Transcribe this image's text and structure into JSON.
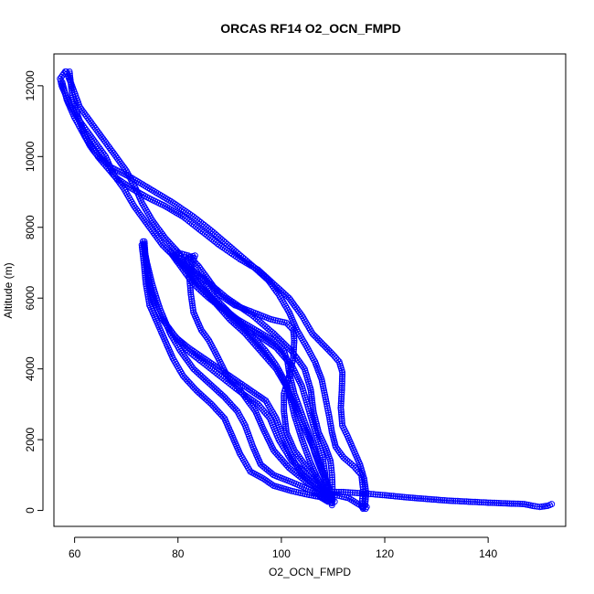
{
  "chart_data": {
    "type": "scatter",
    "title": "ORCAS RF14 O2_OCN_FMPD",
    "xlabel": "O2_OCN_FMPD",
    "ylabel": "Altitude (m)",
    "xlim": [
      56,
      155
    ],
    "ylim": [
      -450,
      12900
    ],
    "xticks": [
      60,
      80,
      100,
      120,
      140
    ],
    "yticks": [
      0,
      2000,
      4000,
      6000,
      8000,
      10000,
      12000
    ],
    "grid": false,
    "color": "#0000ff",
    "series": [
      {
        "values": [
          [
            58.4,
            12400
          ],
          [
            59.5,
            12000
          ],
          [
            61,
            11400
          ],
          [
            63.5,
            10900
          ],
          [
            66,
            10400
          ],
          [
            68,
            10000
          ],
          [
            70,
            9600
          ],
          [
            71.8,
            9100
          ],
          [
            73,
            8700
          ],
          [
            75,
            8200
          ],
          [
            77.5,
            7700
          ],
          [
            80,
            7300
          ],
          [
            82,
            6800
          ],
          [
            84.5,
            6300
          ],
          [
            87,
            5900
          ],
          [
            90,
            5400
          ],
          [
            93,
            5000
          ],
          [
            96,
            4500
          ],
          [
            99,
            4000
          ],
          [
            101,
            3500
          ],
          [
            102.5,
            3000
          ],
          [
            104,
            2500
          ],
          [
            105.5,
            2000
          ],
          [
            107,
            1500
          ],
          [
            108.3,
            1000
          ],
          [
            109.3,
            600
          ],
          [
            109.7,
            300
          ],
          [
            109.8,
            150
          ]
        ]
      },
      {
        "values": [
          [
            109.8,
            200
          ],
          [
            109.9,
            600
          ],
          [
            109.8,
            1000
          ],
          [
            109.5,
            1400
          ],
          [
            108.5,
            1800
          ],
          [
            107.2,
            2200
          ],
          [
            106.2,
            2800
          ],
          [
            105.7,
            3400
          ],
          [
            104.5,
            4000
          ],
          [
            102,
            4500
          ],
          [
            98.5,
            5000
          ],
          [
            94.5,
            5500
          ],
          [
            89.5,
            6000
          ],
          [
            84.5,
            6600
          ],
          [
            80.5,
            7000
          ],
          [
            77,
            7500
          ],
          [
            74.5,
            8000
          ],
          [
            71.5,
            8600
          ],
          [
            69.5,
            9100
          ],
          [
            67.5,
            9500
          ],
          [
            66,
            10000
          ],
          [
            63.5,
            10500
          ],
          [
            61,
            11000
          ],
          [
            59,
            11500
          ],
          [
            57.5,
            12000
          ],
          [
            57.2,
            12200
          ],
          [
            58.2,
            12400
          ]
        ]
      },
      {
        "values": [
          [
            57.6,
            12100
          ],
          [
            58.5,
            11600
          ],
          [
            60,
            11100
          ],
          [
            61.5,
            10700
          ],
          [
            63,
            10300
          ],
          [
            64,
            10100
          ],
          [
            67,
            9700
          ],
          [
            71,
            9400
          ],
          [
            75,
            9050
          ],
          [
            79,
            8700
          ],
          [
            83,
            8300
          ],
          [
            86.5,
            7900
          ],
          [
            90.5,
            7400
          ],
          [
            94.5,
            6900
          ],
          [
            97.5,
            6500
          ],
          [
            99.5,
            6100
          ],
          [
            101.5,
            5600
          ],
          [
            103,
            5100
          ],
          [
            105,
            4600
          ],
          [
            106.5,
            4200
          ],
          [
            107.8,
            3700
          ],
          [
            108.5,
            3200
          ],
          [
            109.2,
            2700
          ],
          [
            109.8,
            2200
          ],
          [
            110.5,
            1800
          ],
          [
            112,
            1500
          ],
          [
            114,
            1250
          ],
          [
            115.5,
            1000
          ],
          [
            115.8,
            600
          ],
          [
            115.6,
            200
          ],
          [
            115.8,
            50
          ]
        ]
      },
      {
        "values": [
          [
            115.8,
            100
          ],
          [
            113,
            350
          ],
          [
            110,
            450
          ],
          [
            108,
            500
          ],
          [
            109,
            520
          ],
          [
            112,
            520
          ],
          [
            116,
            480
          ],
          [
            120,
            430
          ],
          [
            125,
            360
          ],
          [
            132,
            280
          ],
          [
            140,
            220
          ],
          [
            147,
            180
          ],
          [
            149,
            120
          ],
          [
            150,
            100
          ],
          [
            151.5,
            130
          ],
          [
            152.3,
            180
          ]
        ]
      },
      {
        "values": [
          [
            116.2,
            150
          ],
          [
            116.4,
            500
          ],
          [
            116,
            900
          ],
          [
            115.2,
            1300
          ],
          [
            114,
            1700
          ],
          [
            112.8,
            2100
          ],
          [
            111.8,
            2400
          ],
          [
            111.5,
            2900
          ],
          [
            111.7,
            3400
          ],
          [
            111.8,
            3900
          ],
          [
            111.2,
            4200
          ],
          [
            110,
            4400
          ],
          [
            108,
            4700
          ],
          [
            106,
            5000
          ],
          [
            104,
            5500
          ],
          [
            101.5,
            6000
          ],
          [
            98.5,
            6400
          ],
          [
            95.5,
            6800
          ],
          [
            92,
            7100
          ],
          [
            88,
            7500
          ],
          [
            84.5,
            7900
          ],
          [
            81,
            8300
          ],
          [
            77.5,
            8600
          ],
          [
            74,
            8850
          ],
          [
            71,
            9100
          ],
          [
            68,
            9400
          ],
          [
            64.5,
            10000
          ],
          [
            62,
            10600
          ],
          [
            60.5,
            11200
          ],
          [
            59.5,
            11800
          ],
          [
            59,
            12400
          ]
        ]
      },
      {
        "values": [
          [
            110.3,
            250
          ],
          [
            107.8,
            500
          ],
          [
            104.5,
            850
          ],
          [
            101.5,
            1200
          ],
          [
            98.5,
            1700
          ],
          [
            96.5,
            2300
          ],
          [
            95,
            2800
          ],
          [
            93.5,
            3100
          ],
          [
            91.5,
            3500
          ],
          [
            89.5,
            3800
          ],
          [
            87.8,
            4300
          ],
          [
            86,
            4800
          ],
          [
            84.5,
            5100
          ],
          [
            83,
            5600
          ],
          [
            82.5,
            6100
          ],
          [
            82.2,
            6600
          ],
          [
            82.8,
            7000
          ],
          [
            83.3,
            7200
          ],
          [
            82,
            7150
          ],
          [
            81.3,
            7050
          ]
        ]
      },
      {
        "values": [
          [
            81,
            7100
          ],
          [
            83.5,
            6700
          ],
          [
            86.5,
            6100
          ],
          [
            90.5,
            5500
          ],
          [
            94,
            5000
          ],
          [
            97,
            4500
          ],
          [
            99,
            4100
          ],
          [
            100.5,
            3700
          ],
          [
            101.5,
            3300
          ],
          [
            102.5,
            2700
          ],
          [
            104,
            2000
          ],
          [
            105.5,
            1400
          ],
          [
            107,
            900
          ],
          [
            108.5,
            550
          ],
          [
            109.6,
            350
          ]
        ]
      },
      {
        "values": [
          [
            109.5,
            400
          ],
          [
            107.5,
            700
          ],
          [
            105,
            1000
          ],
          [
            102,
            1400
          ],
          [
            99.5,
            2000
          ],
          [
            97.8,
            2600
          ],
          [
            95.5,
            3000
          ],
          [
            92.5,
            3300
          ],
          [
            89,
            3700
          ],
          [
            85.5,
            4100
          ],
          [
            82,
            4500
          ],
          [
            79,
            5000
          ],
          [
            76.5,
            5500
          ],
          [
            75,
            6100
          ],
          [
            74.2,
            6700
          ],
          [
            73.6,
            7200
          ],
          [
            73.4,
            7500
          ]
        ]
      },
      {
        "values": [
          [
            73.5,
            7600
          ],
          [
            73.8,
            7000
          ],
          [
            74.3,
            6500
          ],
          [
            75.2,
            5900
          ],
          [
            77,
            5400
          ],
          [
            79.5,
            4900
          ],
          [
            82,
            4600
          ],
          [
            85,
            4300
          ],
          [
            88,
            4000
          ],
          [
            91,
            3700
          ],
          [
            94,
            3400
          ],
          [
            97,
            3100
          ],
          [
            99,
            2600
          ],
          [
            100.5,
            2000
          ],
          [
            102,
            1500
          ],
          [
            104,
            1000
          ],
          [
            106.5,
            700
          ],
          [
            108.3,
            500
          ],
          [
            109.3,
            280
          ]
        ]
      },
      {
        "values": [
          [
            109.2,
            250
          ],
          [
            106,
            550
          ],
          [
            102,
            800
          ],
          [
            98.5,
            1000
          ],
          [
            96,
            1300
          ],
          [
            94.5,
            1800
          ],
          [
            93,
            2400
          ],
          [
            91.5,
            2800
          ],
          [
            89,
            3200
          ],
          [
            86,
            3600
          ],
          [
            83,
            4000
          ],
          [
            80.5,
            4500
          ],
          [
            78.5,
            5000
          ],
          [
            76.5,
            5700
          ],
          [
            75,
            6400
          ],
          [
            74,
            7000
          ],
          [
            73.2,
            7600
          ]
        ]
      },
      {
        "values": [
          [
            73,
            7500
          ],
          [
            73.4,
            7000
          ],
          [
            73.8,
            6400
          ],
          [
            74.5,
            5800
          ],
          [
            76,
            5300
          ],
          [
            77.5,
            4800
          ],
          [
            79,
            4300
          ],
          [
            81,
            3800
          ],
          [
            83.5,
            3400
          ],
          [
            86.5,
            3000
          ],
          [
            89,
            2600
          ],
          [
            90.5,
            2100
          ],
          [
            92,
            1600
          ],
          [
            94,
            1100
          ],
          [
            96.5,
            900
          ],
          [
            98.5,
            700
          ],
          [
            102,
            550
          ],
          [
            105,
            450
          ],
          [
            107.5,
            380
          ],
          [
            109,
            250
          ]
        ]
      },
      {
        "values": [
          [
            78.5,
            7300
          ],
          [
            80.5,
            6900
          ],
          [
            83,
            6400
          ],
          [
            86,
            6000
          ],
          [
            89.5,
            5600
          ],
          [
            93,
            5200
          ],
          [
            96,
            4900
          ],
          [
            99,
            4600
          ],
          [
            102,
            4100
          ],
          [
            104,
            3500
          ],
          [
            105,
            3000
          ],
          [
            106,
            2500
          ],
          [
            107,
            2000
          ],
          [
            108,
            1500
          ],
          [
            108.5,
            1000
          ],
          [
            108.8,
            500
          ]
        ]
      },
      {
        "values": [
          [
            108.5,
            500
          ],
          [
            107,
            900
          ],
          [
            104.5,
            1300
          ],
          [
            102.5,
            1700
          ],
          [
            101,
            2200
          ],
          [
            100.5,
            2800
          ],
          [
            100.5,
            3300
          ],
          [
            101.5,
            3800
          ],
          [
            102.3,
            4300
          ],
          [
            102.5,
            4800
          ],
          [
            102.3,
            5100
          ],
          [
            101,
            5300
          ],
          [
            98,
            5400
          ],
          [
            94.5,
            5600
          ],
          [
            91,
            5800
          ],
          [
            88,
            6100
          ],
          [
            86,
            6500
          ],
          [
            84,
            6900
          ],
          [
            82,
            7200
          ],
          [
            79.5,
            7300
          ]
        ]
      },
      {
        "values": [
          [
            79,
            7250
          ],
          [
            81.5,
            6800
          ],
          [
            84.5,
            6300
          ],
          [
            88,
            5800
          ],
          [
            91.5,
            5400
          ],
          [
            95,
            5100
          ],
          [
            98.5,
            4800
          ],
          [
            100.5,
            4500
          ],
          [
            101.2,
            4200
          ],
          [
            101.5,
            3900
          ],
          [
            102.5,
            3300
          ],
          [
            104,
            2700
          ],
          [
            105.5,
            2100
          ],
          [
            106.5,
            1600
          ],
          [
            107.8,
            1100
          ],
          [
            109,
            700
          ],
          [
            109.8,
            300
          ]
        ]
      },
      {
        "values": [
          [
            116.3,
            50
          ],
          [
            116.5,
            100
          ],
          [
            116.2,
            150
          ],
          [
            115.6,
            100
          ],
          [
            115.9,
            80
          ]
        ]
      }
    ]
  }
}
